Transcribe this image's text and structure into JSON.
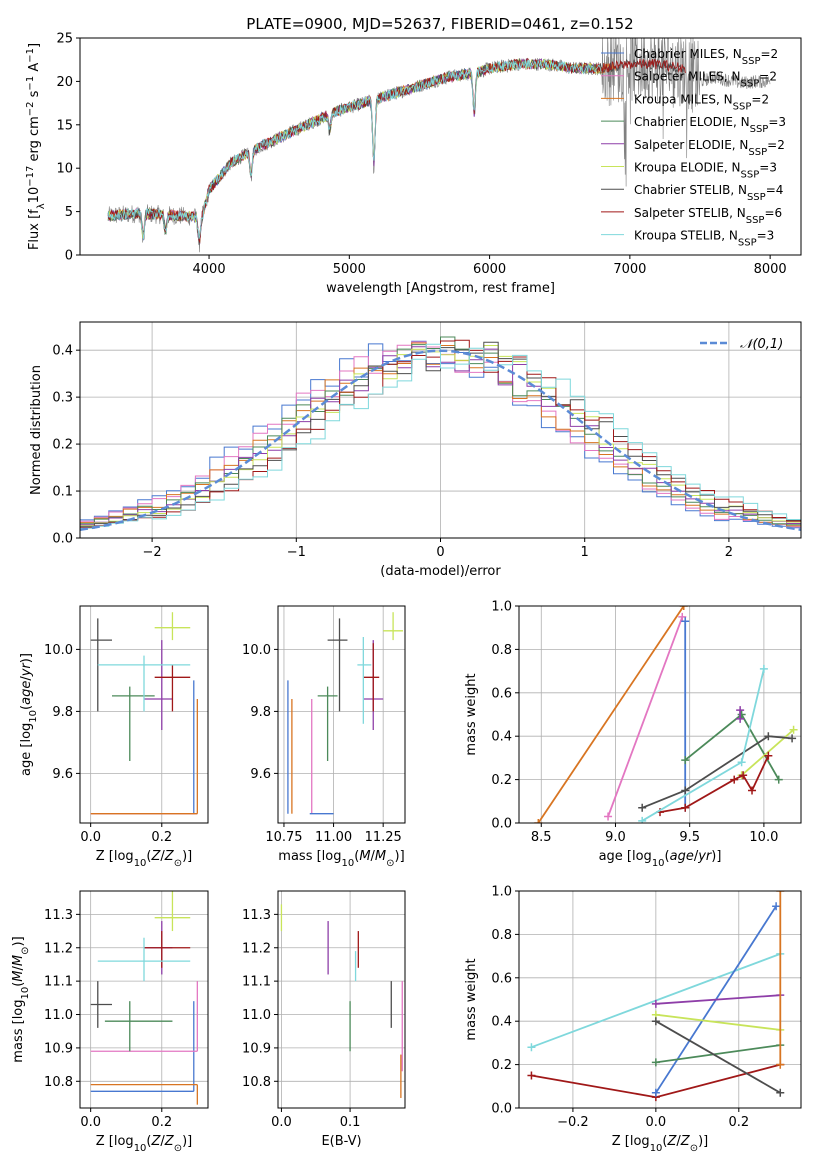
{
  "figure_title": "PLATE=0900, MJD=52637, FIBERID=0461, z=0.152",
  "colors": {
    "Chabrier MILES": "#4878d0",
    "Salpeter MILES": "#e377c2",
    "Kroupa MILES": "#d87522",
    "Chabrier ELODIE": "#4c8a5a",
    "Salpeter ELODIE": "#8e3ea8",
    "Kroupa ELODIE": "#c8e45a",
    "Chabrier STELIB": "#4d4d4d",
    "Salpeter STELIB": "#a01818",
    "Kroupa STELIB": "#7fd8dc"
  },
  "chart_data": [
    {
      "id": "spectrum",
      "type": "line",
      "title": "PLATE=0900, MJD=52637, FIBERID=0461, z=0.152",
      "xlabel": "wavelength [Angstrom, rest frame]",
      "ylabel": "Flux [f_λ 10^-17 erg cm^-2 s^-1 A^-1]",
      "xlim": [
        3080,
        8220
      ],
      "ylim": [
        0,
        25
      ],
      "xticks": [
        4000,
        5000,
        6000,
        7000,
        8000
      ],
      "yticks": [
        0,
        5,
        10,
        15,
        20,
        25
      ],
      "grid": false,
      "legend_position": "upper right",
      "legend": [
        "Chabrier MILES, N_SSP=2",
        "Salpeter MILES, N_SSP=2",
        "Kroupa MILES, N_SSP=2",
        "Chabrier ELODIE, N_SSP=3",
        "Salpeter ELODIE, N_SSP=2",
        "Kroupa ELODIE, N_SSP=3",
        "Chabrier STELIB, N_SSP=4",
        "Salpeter STELIB, N_SSP=6",
        "Kroupa STELIB, N_SSP=3"
      ],
      "observed_color": "#808080",
      "continuum": {
        "x": [
          3280,
          3500,
          3800,
          3950,
          4000,
          4150,
          4300,
          4500,
          4700,
          4900,
          5100,
          5300,
          5500,
          5700,
          5900,
          6000,
          6200,
          6400,
          6600,
          6800,
          7000,
          7200,
          7400,
          7500,
          7600,
          7800,
          7900
        ],
        "y": [
          4.5,
          4.8,
          4.5,
          4.3,
          7.5,
          10.5,
          12,
          13.5,
          15,
          16.5,
          17.5,
          18.5,
          19.5,
          20.5,
          21,
          21.5,
          22,
          22,
          21.5,
          21.5,
          22,
          22,
          21.5,
          20,
          20.5,
          19.8,
          20
        ]
      },
      "features": [
        {
          "x": 3530,
          "depth": 3
        },
        {
          "x": 3690,
          "depth": 2
        },
        {
          "x": 3930,
          "depth": 3
        },
        {
          "x": 4300,
          "depth": 3
        },
        {
          "x": 4860,
          "depth": 2
        },
        {
          "x": 5175,
          "depth": 8
        },
        {
          "x": 5890,
          "depth": 5
        }
      ],
      "models": [
        {
          "name": "Chabrier MILES",
          "xmax": 5900
        },
        {
          "name": "Salpeter MILES",
          "xmax": 5900
        },
        {
          "name": "Kroupa MILES",
          "xmax": 6900
        },
        {
          "name": "Chabrier ELODIE",
          "xmax": 6800
        },
        {
          "name": "Salpeter ELODIE",
          "xmax": 6800
        },
        {
          "name": "Kroupa ELODIE",
          "xmax": 6800
        },
        {
          "name": "Chabrier STELIB",
          "xmax": 7400
        },
        {
          "name": "Salpeter STELIB",
          "xmax": 7400
        },
        {
          "name": "Kroupa STELIB",
          "xmax": 6800
        }
      ]
    },
    {
      "id": "residual_hist",
      "type": "line",
      "xlabel": "(data-model)/error",
      "ylabel": "Normed distribution",
      "xlim": [
        -2.5,
        2.5
      ],
      "ylim": [
        0,
        0.46
      ],
      "xticks": [
        -2,
        -1,
        0,
        1,
        2
      ],
      "yticks": [
        0,
        0.1,
        0.2,
        0.3,
        0.4
      ],
      "grid": true,
      "legend_position": "upper right",
      "reference": {
        "name": "𝒩(0,1)",
        "mean": 0,
        "sigma": 1,
        "color": "#5b8bd6"
      },
      "bins": {
        "start": -2.5,
        "width": 0.1,
        "count": 50
      },
      "series_peak": [
        0.39,
        0.38,
        0.41,
        0.4,
        0.38,
        0.42,
        0.44,
        0.4,
        0.39
      ]
    },
    {
      "id": "age_vs_Z",
      "type": "scatter",
      "xlabel": "Z [log10(Z/Z⊙)]",
      "ylabel": "age  [log10(age/yr)]",
      "xlim": [
        -0.03,
        0.33
      ],
      "ylim": [
        9.44,
        10.14
      ],
      "xticks": [
        0,
        0.2
      ],
      "yticks": [
        9.6,
        9.8,
        10.0
      ],
      "grid": true,
      "points": [
        {
          "series": "Chabrier MILES",
          "x": 0.29,
          "y": 9.47,
          "xe": [
            0.29,
            0.29
          ],
          "ye": [
            9.47,
            9.9
          ]
        },
        {
          "series": "Salpeter MILES",
          "x": 0.3,
          "y": 9.47,
          "xe": [
            0,
            0.3
          ],
          "ye": [
            9.47,
            9.47
          ]
        },
        {
          "series": "Kroupa MILES",
          "x": 0.3,
          "y": 9.47,
          "xe": [
            0,
            0.3
          ],
          "ye": [
            9.47,
            9.84
          ]
        },
        {
          "series": "Chabrier ELODIE",
          "x": 0.11,
          "y": 9.85,
          "xe": [
            0.06,
            0.18
          ],
          "ye": [
            9.64,
            9.88
          ]
        },
        {
          "series": "Salpeter ELODIE",
          "x": 0.2,
          "y": 9.84,
          "xe": [
            0.15,
            0.23
          ],
          "ye": [
            9.74,
            10.03
          ]
        },
        {
          "series": "Kroupa ELODIE",
          "x": 0.23,
          "y": 10.07,
          "xe": [
            0.18,
            0.28
          ],
          "ye": [
            10.03,
            10.12
          ]
        },
        {
          "series": "Chabrier STELIB",
          "x": 0.02,
          "y": 10.03,
          "xe": [
            0,
            0.06
          ],
          "ye": [
            9.8,
            10.1
          ]
        },
        {
          "series": "Salpeter STELIB",
          "x": 0.23,
          "y": 9.91,
          "xe": [
            0.18,
            0.28
          ],
          "ye": [
            9.8,
            9.95
          ]
        },
        {
          "series": "Kroupa STELIB",
          "x": 0.15,
          "y": 9.95,
          "xe": [
            0.02,
            0.28
          ],
          "ye": [
            9.8,
            9.98
          ]
        }
      ]
    },
    {
      "id": "age_vs_mass",
      "type": "scatter",
      "xlabel": "mass [log10(M/M⊙)]",
      "ylabel": "",
      "xlim": [
        10.72,
        11.36
      ],
      "ylim": [
        9.44,
        10.14
      ],
      "xticks": [
        10.75,
        11.0,
        11.25
      ],
      "yticks": [
        9.6,
        9.8,
        10.0
      ],
      "grid": true,
      "points": [
        {
          "series": "Chabrier MILES",
          "x": 10.77,
          "y": 9.47,
          "xe": [
            10.77,
            10.77
          ],
          "ye": [
            9.47,
            9.9
          ]
        },
        {
          "series": "Salpeter MILES",
          "x": 10.89,
          "y": 9.47,
          "xe": [
            10.89,
            10.89
          ],
          "ye": [
            9.47,
            9.84
          ]
        },
        {
          "series": "Kroupa MILES",
          "x": 10.79,
          "y": 9.47,
          "xe": [
            10.79,
            10.79
          ],
          "ye": [
            9.47,
            9.84
          ]
        },
        {
          "series": "Chabrier ELODIE",
          "x": 10.97,
          "y": 9.85,
          "xe": [
            10.92,
            11.02
          ],
          "ye": [
            9.64,
            9.88
          ]
        },
        {
          "series": "Salpeter ELODIE",
          "x": 11.2,
          "y": 9.84,
          "xe": [
            11.15,
            11.25
          ],
          "ye": [
            9.74,
            10.03
          ]
        },
        {
          "series": "Kroupa ELODIE",
          "x": 11.3,
          "y": 10.06,
          "xe": [
            11.25,
            11.35
          ],
          "ye": [
            10.03,
            10.12
          ]
        },
        {
          "series": "Chabrier STELIB",
          "x": 11.03,
          "y": 10.03,
          "xe": [
            10.97,
            11.07
          ],
          "ye": [
            9.8,
            10.1
          ]
        },
        {
          "series": "Salpeter STELIB",
          "x": 11.2,
          "y": 9.91,
          "xe": [
            11.15,
            11.23
          ],
          "ye": [
            9.8,
            10.02
          ]
        },
        {
          "series": "Kroupa STELIB",
          "x": 11.15,
          "y": 9.95,
          "xe": [
            11.12,
            11.19
          ],
          "ye": [
            9.76,
            10.04
          ]
        },
        {
          "series": "Chabrier MILES",
          "x": 10.88,
          "y": 9.47,
          "xe": [
            10.88,
            11.0
          ],
          "ye": [
            9.47,
            9.47
          ]
        }
      ]
    },
    {
      "id": "weight_vs_age",
      "type": "line",
      "xlabel": "age  [log10(age/yr)]",
      "ylabel": "mass weight",
      "xlim": [
        8.35,
        10.25
      ],
      "ylim": [
        0,
        1
      ],
      "xticks": [
        8.5,
        9.0,
        9.5,
        10.0
      ],
      "yticks": [
        0,
        0.2,
        0.4,
        0.6,
        0.8,
        1.0
      ],
      "grid": true,
      "series": [
        {
          "name": "Kroupa MILES",
          "x": [
            8.48,
            9.46
          ],
          "y": [
            0,
            1.0
          ]
        },
        {
          "name": "Salpeter MILES",
          "x": [
            8.95,
            9.45
          ],
          "y": [
            0.03,
            0.95
          ]
        },
        {
          "name": "Chabrier MILES",
          "x": [
            9.47,
            9.47
          ],
          "y": [
            0.07,
            0.93
          ]
        },
        {
          "name": "Chabrier ELODIE",
          "x": [
            9.47,
            9.85,
            10.1
          ],
          "y": [
            0.29,
            0.5,
            0.2
          ]
        },
        {
          "name": "Salpeter ELODIE",
          "x": [
            9.84,
            9.84
          ],
          "y": [
            0.48,
            0.52
          ]
        },
        {
          "name": "Kroupa ELODIE",
          "x": [
            9.85,
            10.2
          ],
          "y": [
            0.22,
            0.43
          ]
        },
        {
          "name": "Chabrier STELIB",
          "x": [
            9.18,
            9.47,
            10.03,
            10.19
          ],
          "y": [
            0.07,
            0.15,
            0.4,
            0.39
          ]
        },
        {
          "name": "Salpeter STELIB",
          "x": [
            9.3,
            9.47,
            9.8,
            9.86,
            9.92,
            10.03
          ],
          "y": [
            0.05,
            0.07,
            0.2,
            0.22,
            0.15,
            0.31
          ]
        },
        {
          "name": "Kroupa STELIB",
          "x": [
            9.18,
            9.85,
            10.0
          ],
          "y": [
            0.01,
            0.28,
            0.71
          ]
        }
      ]
    },
    {
      "id": "mass_vs_Z",
      "type": "scatter",
      "xlabel": "Z [log10(Z/Z⊙)]",
      "ylabel": "mass [log10(M/M⊙)]",
      "xlim": [
        -0.03,
        0.33
      ],
      "ylim": [
        10.72,
        11.37
      ],
      "xticks": [
        0,
        0.2
      ],
      "yticks": [
        10.8,
        10.9,
        11.0,
        11.1,
        11.2,
        11.3
      ],
      "grid": true,
      "points": [
        {
          "series": "Chabrier MILES",
          "x": 0.29,
          "y": 10.77,
          "xe": [
            0,
            0.29
          ],
          "ye": [
            10.77,
            11.04
          ]
        },
        {
          "series": "Salpeter MILES",
          "x": 0.3,
          "y": 10.89,
          "xe": [
            0,
            0.3
          ],
          "ye": [
            10.89,
            11.1
          ]
        },
        {
          "series": "Kroupa MILES",
          "x": 0.3,
          "y": 10.79,
          "xe": [
            0,
            0.3
          ],
          "ye": [
            10.73,
            10.79
          ]
        },
        {
          "series": "Chabrier ELODIE",
          "x": 0.11,
          "y": 10.98,
          "xe": [
            0.04,
            0.23
          ],
          "ye": [
            10.89,
            11.04
          ]
        },
        {
          "series": "Salpeter ELODIE",
          "x": 0.2,
          "y": 11.2,
          "xe": [
            0.15,
            0.23
          ],
          "ye": [
            11.12,
            11.28
          ]
        },
        {
          "series": "Kroupa ELODIE",
          "x": 0.23,
          "y": 11.29,
          "xe": [
            0.18,
            0.28
          ],
          "ye": [
            11.25,
            11.37
          ]
        },
        {
          "series": "Chabrier STELIB",
          "x": 0.02,
          "y": 11.03,
          "xe": [
            0,
            0.06
          ],
          "ye": [
            10.96,
            11.1
          ]
        },
        {
          "series": "Salpeter STELIB",
          "x": 0.2,
          "y": 11.2,
          "xe": [
            0.15,
            0.28
          ],
          "ye": [
            11.14,
            11.25
          ]
        },
        {
          "series": "Kroupa STELIB",
          "x": 0.15,
          "y": 11.16,
          "xe": [
            0.02,
            0.28
          ],
          "ye": [
            11.1,
            11.23
          ]
        }
      ]
    },
    {
      "id": "mass_vs_ebv",
      "type": "scatter",
      "xlabel": "E(B-V)",
      "ylabel": "",
      "xlim": [
        -0.005,
        0.18
      ],
      "ylim": [
        10.72,
        11.37
      ],
      "xticks": [
        0.0,
        0.1
      ],
      "yticks": [
        10.8,
        10.9,
        11.0,
        11.1,
        11.2,
        11.3
      ],
      "grid": true,
      "points": [
        {
          "series": "Kroupa ELODIE",
          "x": 0.0,
          "y": 11.29,
          "xe": [
            0,
            0
          ],
          "ye": [
            11.25,
            11.33
          ]
        },
        {
          "series": "Salpeter ELODIE",
          "x": 0.068,
          "y": 11.2,
          "xe": [
            0.068,
            0.068
          ],
          "ye": [
            11.12,
            11.28
          ]
        },
        {
          "series": "Chabrier ELODIE",
          "x": 0.1,
          "y": 10.98,
          "xe": [
            0.1,
            0.1
          ],
          "ye": [
            10.89,
            11.04
          ]
        },
        {
          "series": "Kroupa STELIB",
          "x": 0.108,
          "y": 11.16,
          "xe": [
            0.108,
            0.108
          ],
          "ye": [
            11.1,
            11.19
          ]
        },
        {
          "series": "Salpeter STELIB",
          "x": 0.112,
          "y": 11.2,
          "xe": [
            0.112,
            0.112
          ],
          "ye": [
            11.14,
            11.25
          ]
        },
        {
          "series": "Chabrier STELIB",
          "x": 0.16,
          "y": 11.03,
          "xe": [
            0.16,
            0.16
          ],
          "ye": [
            10.96,
            11.1
          ]
        },
        {
          "series": "Kroupa MILES",
          "x": 0.174,
          "y": 10.79,
          "xe": [
            0.174,
            0.174
          ],
          "ye": [
            10.75,
            10.88
          ]
        },
        {
          "series": "Salpeter MILES",
          "x": 0.176,
          "y": 10.89,
          "xe": [
            0.176,
            0.176
          ],
          "ye": [
            10.83,
            11.1
          ]
        }
      ]
    },
    {
      "id": "weight_vs_Z",
      "type": "line",
      "xlabel": "Z [log10(Z/Z⊙)]",
      "ylabel": "mass weight",
      "xlim": [
        -0.33,
        0.35
      ],
      "ylim": [
        0,
        1
      ],
      "xticks": [
        -0.2,
        0.0,
        0.2
      ],
      "yticks": [
        0,
        0.2,
        0.4,
        0.6,
        0.8,
        1.0
      ],
      "grid": true,
      "series": [
        {
          "name": "Kroupa STELIB",
          "x": [
            -0.3,
            0.3
          ],
          "y": [
            0.28,
            0.71
          ]
        },
        {
          "name": "Salpeter STELIB",
          "x": [
            -0.3,
            0.0,
            0.3
          ],
          "y": [
            0.15,
            0.05,
            0.2
          ]
        },
        {
          "name": "Chabrier MILES",
          "x": [
            0.0,
            0.29
          ],
          "y": [
            0.07,
            0.93
          ]
        },
        {
          "name": "Salpeter ELODIE",
          "x": [
            0.0,
            0.3
          ],
          "y": [
            0.48,
            0.52
          ]
        },
        {
          "name": "Kroupa ELODIE",
          "x": [
            0.0,
            0.3
          ],
          "y": [
            0.43,
            0.36
          ]
        },
        {
          "name": "Chabrier ELODIE",
          "x": [
            0.0,
            0.3
          ],
          "y": [
            0.21,
            0.29
          ]
        },
        {
          "name": "Chabrier STELIB",
          "x": [
            0.0,
            0.3
          ],
          "y": [
            0.4,
            0.07
          ]
        },
        {
          "name": "Kroupa MILES",
          "x": [
            0.3,
            0.3
          ],
          "y": [
            0.2,
            1.0
          ]
        }
      ]
    }
  ]
}
